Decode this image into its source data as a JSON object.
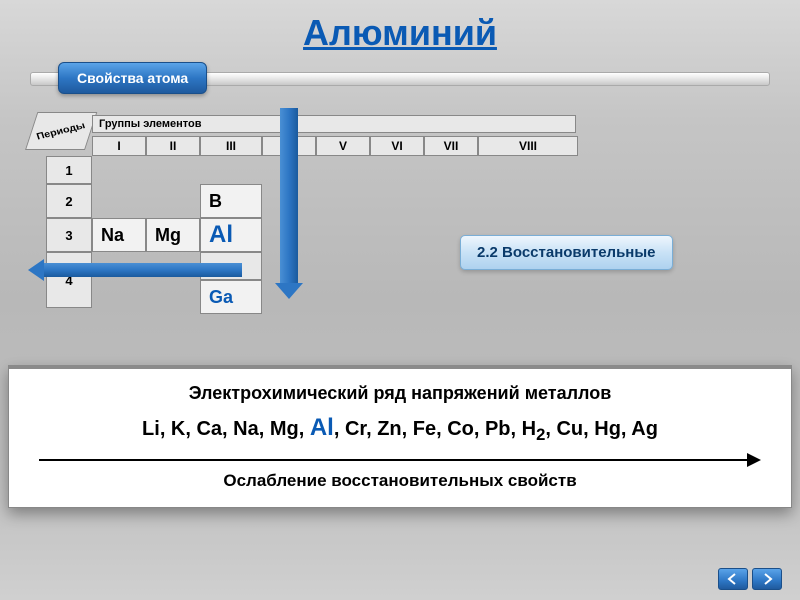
{
  "title": "Алюминий",
  "section_label": "Свойства атома",
  "periodic": {
    "periods_label": "Периоды",
    "groups_label": "Группы элементов",
    "group_headers": [
      "I",
      "II",
      "III",
      "IV",
      "V",
      "VI",
      "VII",
      "VIII"
    ],
    "group_widths": [
      54,
      54,
      62,
      54,
      54,
      54,
      54,
      100
    ],
    "period_numbers": [
      "1",
      "2",
      "3",
      "4"
    ],
    "period_heights": [
      28,
      34,
      34,
      56
    ],
    "cells": {
      "Na": "Na",
      "Mg": "Mg",
      "B": "B",
      "Al": "Al",
      "Ga": "Ga"
    }
  },
  "reducing_badge": "2.2 Восстановительные",
  "series": {
    "title": "Электрохимический ряд напряжений металлов",
    "items": [
      "Li",
      "K",
      "Ca",
      "Na",
      "Mg",
      "Al",
      "Cr",
      "Zn",
      "Fe",
      "Co",
      "Pb",
      "H₂",
      "Cu",
      "Hg",
      "Ag"
    ],
    "highlight": "Al",
    "caption": "Ослабление восстановительных свойств"
  },
  "colors": {
    "title_color": "#0a5ab4",
    "badge_bg_top": "#5aa3e8",
    "badge_bg_bottom": "#1f5a9e",
    "arrow_color": "#2d76c4",
    "cell_border": "#888888",
    "highlight_color": "#0a5ab4",
    "panel_bg": "#ffffff"
  }
}
